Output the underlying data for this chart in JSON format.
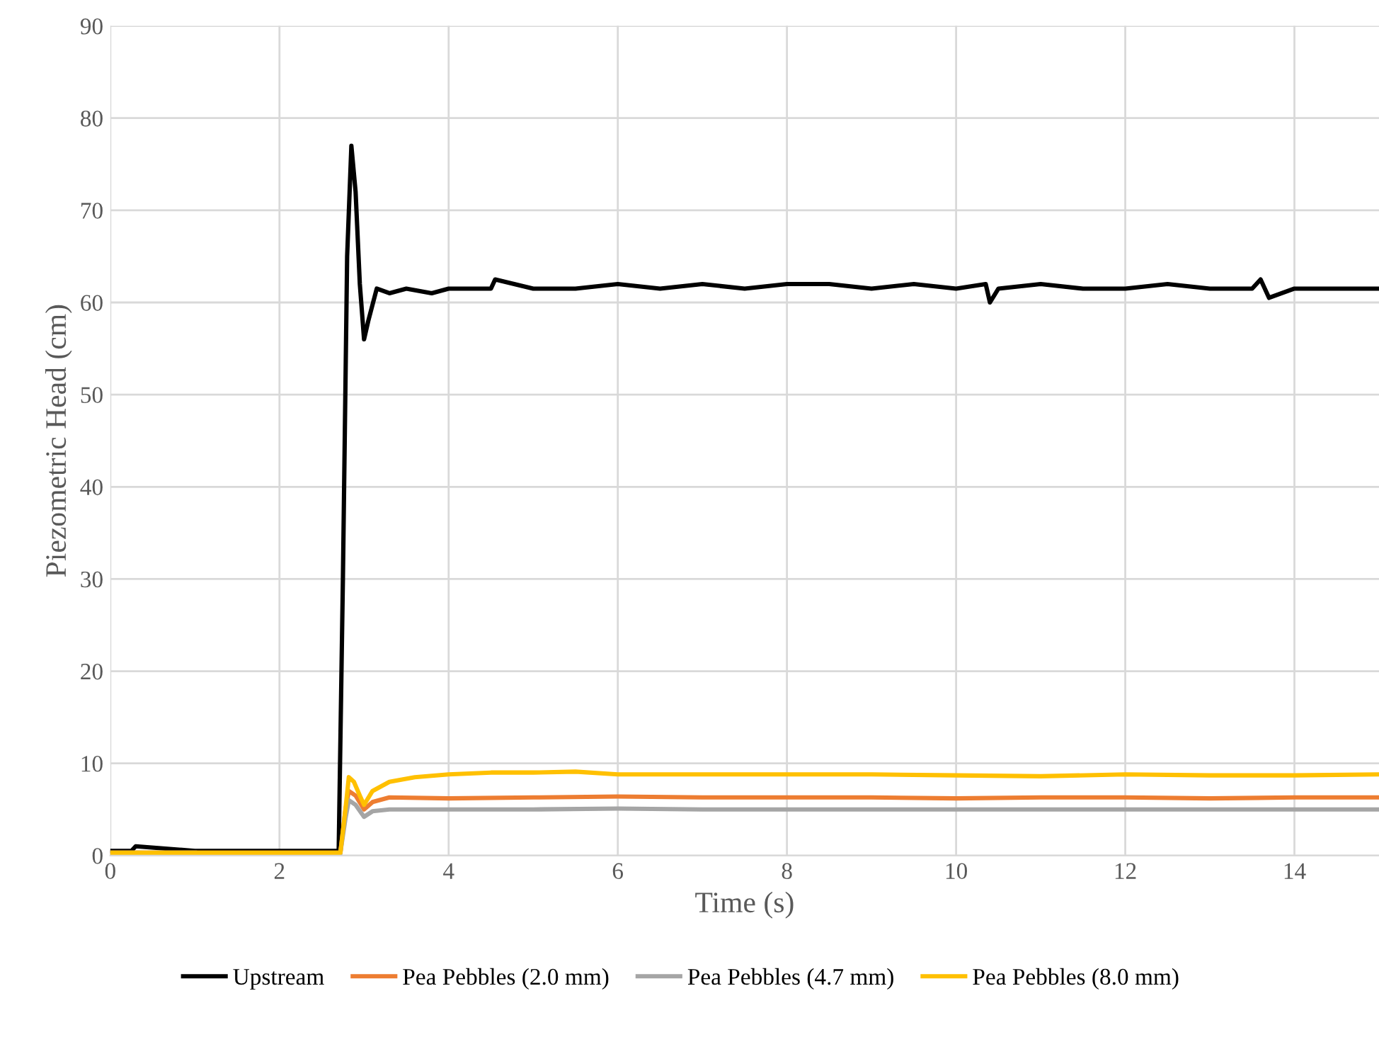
{
  "chart_data": {
    "type": "line",
    "xlabel": "Time (s)",
    "ylabel": "Piezometric Head (cm)",
    "xlim": [
      0,
      15
    ],
    "xticks": [
      0,
      2,
      4,
      6,
      8,
      10,
      12,
      14
    ],
    "ylim": [
      0,
      90
    ],
    "yticks": [
      0,
      10,
      20,
      30,
      40,
      50,
      60,
      70,
      80,
      90
    ],
    "grid": true,
    "legend": "bottom",
    "marker": "none",
    "line_style": "solid",
    "series": [
      {
        "name": "Upstream",
        "color": "#000000",
        "x": [
          0,
          0.25,
          0.3,
          1,
          2,
          2.7,
          2.75,
          2.8,
          2.85,
          2.9,
          2.95,
          3.0,
          3.05,
          3.15,
          3.3,
          3.5,
          3.8,
          4.0,
          4.5,
          4.55,
          5,
          5.5,
          6,
          6.5,
          7,
          7.5,
          8,
          8.5,
          9,
          9.5,
          10,
          10.35,
          10.4,
          10.5,
          11,
          11.5,
          12,
          12.5,
          13,
          13.5,
          13.6,
          13.7,
          14,
          14.5,
          15
        ],
        "values": [
          0.5,
          0.5,
          1,
          0.5,
          0.5,
          0.5,
          30,
          65,
          77,
          72,
          62,
          56,
          58,
          61.5,
          61,
          61.5,
          61,
          61.5,
          61.5,
          62.5,
          61.5,
          61.5,
          62,
          61.5,
          62,
          61.5,
          62,
          62,
          61.5,
          62,
          61.5,
          62,
          60,
          61.5,
          62,
          61.5,
          61.5,
          62,
          61.5,
          61.5,
          62.5,
          60.5,
          61.5,
          61.5,
          61.5
        ]
      },
      {
        "name": "Pea Pebbles (2.0 mm)",
        "color": "#ed7d31",
        "x": [
          0,
          1,
          2,
          2.72,
          2.78,
          2.82,
          2.9,
          3.0,
          3.1,
          3.3,
          4,
          5,
          6,
          7,
          8,
          9,
          10,
          11,
          12,
          13,
          14,
          15
        ],
        "values": [
          0.3,
          0.3,
          0.3,
          0.3,
          5,
          7,
          6.5,
          5,
          5.8,
          6.3,
          6.2,
          6.3,
          6.4,
          6.3,
          6.3,
          6.3,
          6.2,
          6.3,
          6.3,
          6.2,
          6.3,
          6.3
        ]
      },
      {
        "name": "Pea Pebbles (4.7 mm)",
        "color": "#a5a5a5",
        "x": [
          0,
          1,
          2,
          2.72,
          2.78,
          2.82,
          2.9,
          3.0,
          3.1,
          3.3,
          4,
          5,
          6,
          7,
          8,
          9,
          10,
          11,
          12,
          13,
          14,
          15
        ],
        "values": [
          0.3,
          0.3,
          null,
          0.3,
          4,
          6,
          5.5,
          4.2,
          4.8,
          5,
          5,
          5,
          5.1,
          5,
          5,
          5,
          5,
          5,
          5,
          5,
          5,
          5
        ]
      },
      {
        "name": "Pea Pebbles (8.0 mm)",
        "color": "#ffc000",
        "x": [
          0,
          1,
          2,
          2.72,
          2.78,
          2.82,
          2.88,
          2.95,
          3.0,
          3.1,
          3.3,
          3.6,
          4,
          4.5,
          5,
          5.5,
          6,
          7,
          8,
          9,
          10,
          11,
          12,
          13,
          14,
          15
        ],
        "values": [
          0.3,
          0.3,
          0.3,
          0.3,
          5,
          8.5,
          8,
          6.5,
          5.5,
          7,
          8,
          8.5,
          8.8,
          9,
          9,
          9.1,
          8.8,
          8.8,
          8.8,
          8.8,
          8.7,
          8.6,
          8.8,
          8.7,
          8.7,
          8.8
        ]
      }
    ]
  }
}
